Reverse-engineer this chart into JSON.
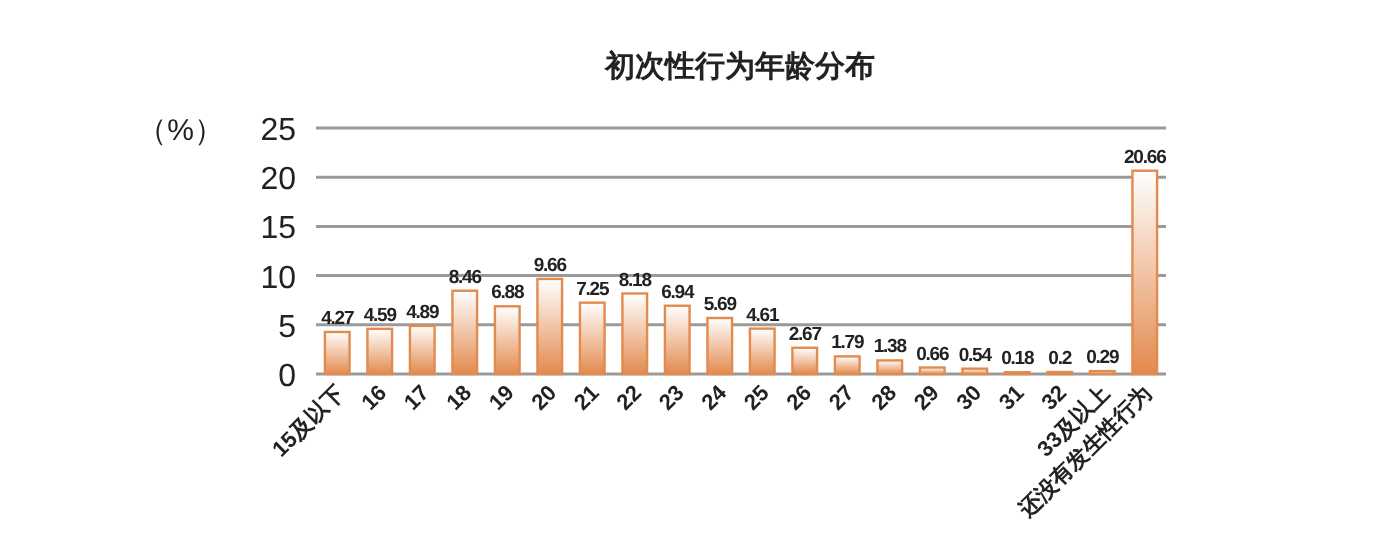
{
  "chart_data": {
    "type": "bar",
    "title": "初次性行为年龄分布",
    "ylabel": "（%）",
    "categories": [
      "15及以下",
      "16",
      "17",
      "18",
      "19",
      "20",
      "21",
      "22",
      "23",
      "24",
      "25",
      "26",
      "27",
      "28",
      "29",
      "30",
      "31",
      "32",
      "33及以上",
      "还没有发生性行为"
    ],
    "values": [
      4.27,
      4.59,
      4.89,
      8.46,
      6.88,
      9.66,
      7.25,
      8.18,
      6.94,
      5.69,
      4.61,
      2.67,
      1.79,
      1.38,
      0.66,
      0.54,
      0.18,
      0.2,
      0.29,
      20.66
    ],
    "color": "#e38a4e",
    "ylim": [
      0,
      25
    ],
    "yticks": [
      0,
      5,
      10,
      15,
      20,
      25
    ],
    "grid": "y",
    "data_labels": true
  }
}
